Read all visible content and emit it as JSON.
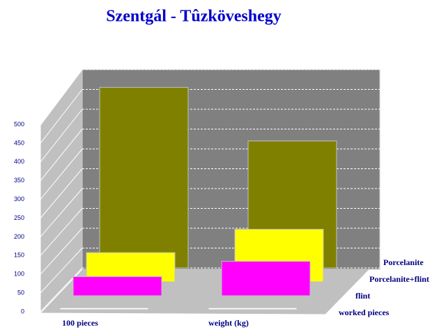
{
  "chart_data": {
    "type": "bar3d",
    "title": "Szentgál - Tûzköveshegy",
    "categories": [
      "100 pieces",
      "weight (kg)"
    ],
    "series": [
      {
        "name": "worked pieces",
        "color": "#ffffff",
        "values": [
          5,
          5
        ]
      },
      {
        "name": "flint",
        "color": "#ff00ff",
        "values": [
          50,
          90
        ]
      },
      {
        "name": "Porcelanite+flint",
        "color": "#ffff00",
        "values": [
          75,
          135
        ]
      },
      {
        "name": "Porcelanite",
        "color": "#808000",
        "values": [
          455,
          320
        ]
      }
    ],
    "ylim": [
      0,
      500
    ],
    "yticks": [
      0,
      50,
      100,
      150,
      200,
      250,
      300,
      350,
      400,
      450,
      500
    ],
    "grid": true
  }
}
